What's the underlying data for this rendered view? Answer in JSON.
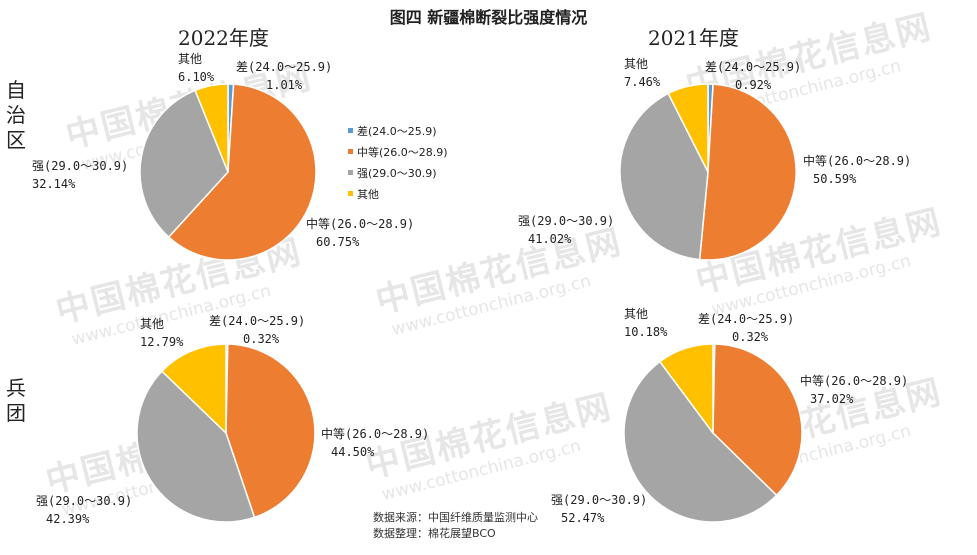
{
  "title": "图四  新疆棉断裂比强度情况",
  "years": [
    "2022年度",
    "2021年度"
  ],
  "row_labels": [
    "自治区",
    "兵团"
  ],
  "legend": [
    {
      "label": "差(24.0～25.9)",
      "color": "#5B9BD5"
    },
    {
      "label": "中等(26.0～28.9)",
      "color": "#ED7D31"
    },
    {
      "label": "强(29.0～30.9)",
      "color": "#A5A5A5"
    },
    {
      "label": "其他",
      "color": "#FFC000"
    }
  ],
  "watermark": {
    "cn": "中国棉花信息网",
    "en": "www.cottonchina.org.cn"
  },
  "source": {
    "line1": "数据来源：中国纤维质量监测中心",
    "line2": "数据整理：棉花展望BCO"
  },
  "chart_data": [
    {
      "type": "pie",
      "region": "自治区",
      "year": "2022年度",
      "categories": [
        "差(24.0～25.9)",
        "中等(26.0～28.9)",
        "强(29.0～30.9)",
        "其他"
      ],
      "values": [
        1.01,
        60.75,
        32.14,
        6.1
      ],
      "labels": [
        "差(24.0～25.9)",
        "中等(26.0～28.9)",
        "强(29.0～30.9)",
        "其他"
      ],
      "pct_labels": [
        "1.01%",
        "60.75%",
        "32.14%",
        "6.10%"
      ]
    },
    {
      "type": "pie",
      "region": "自治区",
      "year": "2021年度",
      "categories": [
        "差(24.0～25.9)",
        "中等(26.0～28.9)",
        "强(29.0～30.9)",
        "其他"
      ],
      "values": [
        0.92,
        50.59,
        41.02,
        7.46
      ],
      "labels": [
        "差(24.0～25.9)",
        "中等(26.0～28.9)",
        "强(29.0～30.9)",
        "其他"
      ],
      "pct_labels": [
        "0.92%",
        "50.59%",
        "41.02%",
        "7.46%"
      ]
    },
    {
      "type": "pie",
      "region": "兵团",
      "year": "2022年度",
      "categories": [
        "差(24.0～25.9)",
        "中等(26.0～28.9)",
        "强(29.0～30.9)",
        "其他"
      ],
      "values": [
        0.32,
        44.5,
        42.39,
        12.79
      ],
      "labels": [
        "差(24.0～25.9)",
        "中等(26.0～28.9)",
        "强(29.0～30.9)",
        "其他"
      ],
      "pct_labels": [
        "0.32%",
        "44.50%",
        "42.39%",
        "12.79%"
      ]
    },
    {
      "type": "pie",
      "region": "兵团",
      "year": "2021年度",
      "categories": [
        "差(24.0～25.9)",
        "中等(26.0～28.9)",
        "强(29.0～30.9)",
        "其他"
      ],
      "values": [
        0.32,
        37.02,
        52.47,
        10.18
      ],
      "labels": [
        "差(24.0～25.9)",
        "中等(26.0～28.9)",
        "强(29.0～30.9)",
        "其他"
      ],
      "pct_labels": [
        "0.32%",
        "37.02%",
        "52.47%",
        "10.18%"
      ]
    }
  ]
}
